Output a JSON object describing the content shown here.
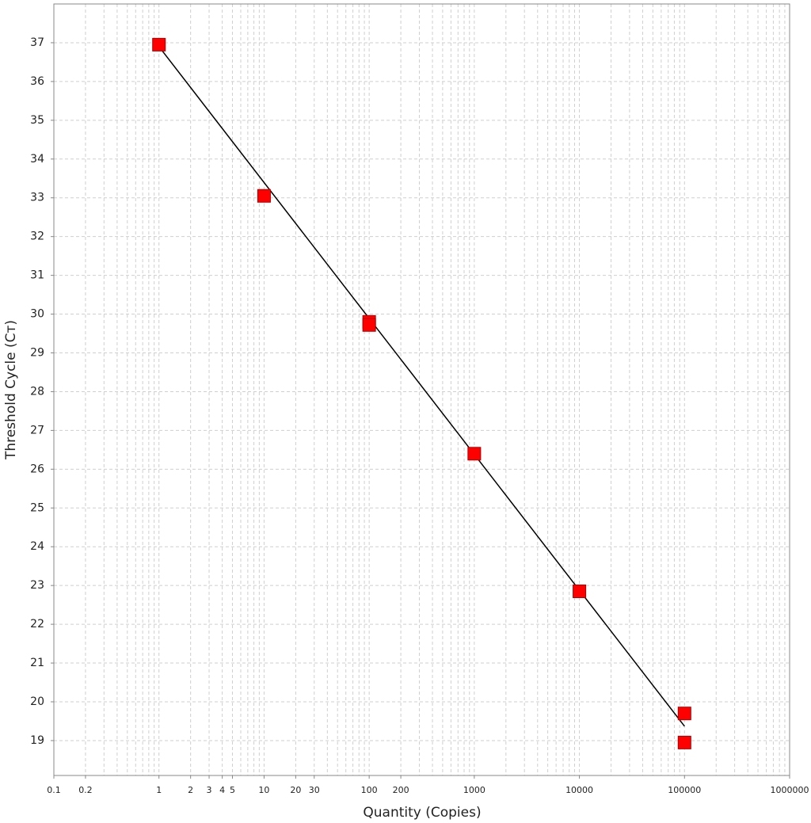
{
  "chart_data": {
    "type": "scatter",
    "x_label": "Quantity (Copies)",
    "y_label": "Threshold Cycle (Cᴛ)",
    "xscale": "log",
    "xlim": [
      0.1,
      1000000
    ],
    "ylim": [
      18.1,
      38
    ],
    "xticks": [
      0.1,
      0.2,
      1,
      2,
      3,
      4,
      5,
      10,
      20,
      30,
      100,
      200,
      1000,
      10000,
      100000,
      1000000
    ],
    "yticks": [
      19,
      20,
      21,
      22,
      23,
      24,
      25,
      26,
      27,
      28,
      29,
      30,
      31,
      32,
      33,
      34,
      35,
      36,
      37
    ],
    "xgrid": [
      0.1,
      0.2,
      0.3,
      0.4,
      0.5,
      0.6,
      0.7,
      0.8,
      0.9,
      1,
      2,
      3,
      4,
      5,
      6,
      7,
      8,
      9,
      10,
      20,
      30,
      40,
      50,
      60,
      70,
      80,
      90,
      100,
      200,
      300,
      400,
      500,
      600,
      700,
      800,
      900,
      1000,
      2000,
      3000,
      4000,
      5000,
      6000,
      7000,
      8000,
      9000,
      10000,
      20000,
      30000,
      40000,
      50000,
      60000,
      70000,
      80000,
      90000,
      100000,
      200000,
      300000,
      400000,
      500000,
      600000,
      700000,
      800000,
      900000
    ],
    "grid": true,
    "points": {
      "color": "#ff0000",
      "x": [
        1,
        10,
        100,
        100,
        1000,
        10000,
        100000,
        100000
      ],
      "values": [
        36.95,
        33.05,
        29.8,
        29.72,
        26.4,
        22.85,
        19.7,
        18.95
      ]
    },
    "fit_line": {
      "color": "#000000",
      "x": [
        1,
        100000
      ],
      "values": [
        36.9,
        19.37
      ]
    }
  }
}
